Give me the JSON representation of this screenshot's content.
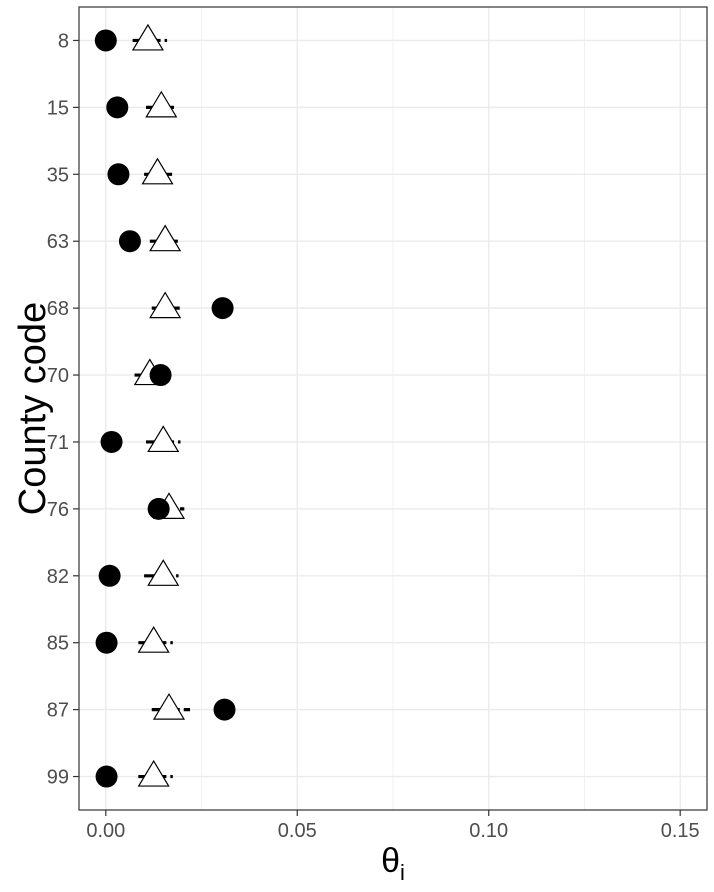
{
  "chart_data": {
    "type": "scatter",
    "xlabel": "θ",
    "xlabel_subscript": "i",
    "ylabel": "County code",
    "xlim": [
      -0.007,
      0.157
    ],
    "x_ticks": [
      0.0,
      0.05,
      0.1,
      0.15
    ],
    "x_tick_labels": [
      "0.00",
      "0.05",
      "0.10",
      "0.15"
    ],
    "x_minor_ticks": [
      0.025,
      0.075,
      0.125
    ],
    "categories": [
      "8",
      "15",
      "35",
      "63",
      "68",
      "70",
      "71",
      "76",
      "82",
      "85",
      "87",
      "99"
    ],
    "grid": true,
    "legend": "none",
    "series": [
      {
        "marker": "filled-circle",
        "color": "#000000",
        "values": [
          0.0,
          0.003,
          0.0033,
          0.0063,
          0.0305,
          0.0143,
          0.0015,
          0.0138,
          0.001,
          0.0002,
          0.031,
          0.0002
        ]
      },
      {
        "marker": "open-triangle",
        "color": "#000000",
        "values": [
          0.011,
          0.0145,
          0.0135,
          0.0155,
          0.0155,
          0.0115,
          0.015,
          0.0165,
          0.015,
          0.0125,
          0.0165,
          0.0125
        ]
      },
      {
        "marker": "dash-interval",
        "color": "#000000",
        "low": [
          0.007,
          0.0105,
          0.01,
          0.0115,
          0.012,
          0.0075,
          0.0105,
          0.011,
          0.01,
          0.0085,
          0.012,
          0.0085
        ],
        "high": [
          0.016,
          0.018,
          0.0175,
          0.0195,
          0.02,
          0.014,
          0.0195,
          0.0205,
          0.019,
          0.0175,
          0.022,
          0.0175
        ]
      }
    ]
  }
}
